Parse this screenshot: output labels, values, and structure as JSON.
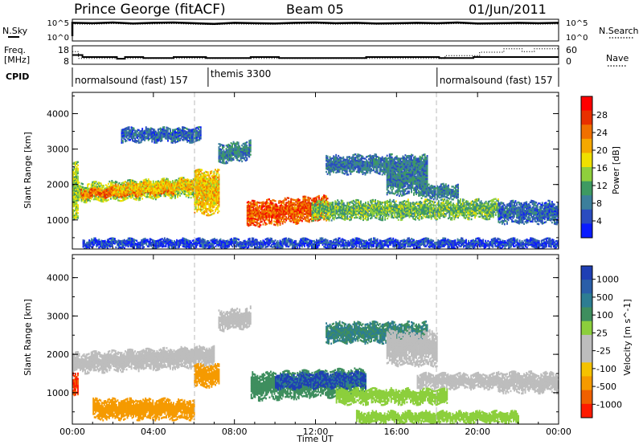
{
  "header": {
    "station": "Prince George (fitACF)",
    "beam": "Beam 05",
    "date": "01/Jun/2011"
  },
  "chart_data": [
    {
      "type": "line",
      "panel": "noise",
      "left_label": "N.Sky",
      "right_label": "N.Search",
      "y_ticks": [
        "10^5",
        "10^0"
      ],
      "series_sky_log10": [
        4.9,
        4.8,
        5.0,
        4.7,
        4.9,
        5.0,
        4.8,
        4.6,
        4.9,
        4.8,
        4.7,
        4.9,
        5.0,
        4.8,
        4.9,
        4.7,
        4.8,
        4.9,
        4.8,
        5.0,
        4.7,
        4.8,
        4.9,
        4.8,
        4.9
      ],
      "series_search_log10": [
        4.6,
        4.5,
        4.7,
        4.5,
        4.6,
        4.7,
        4.5,
        4.4,
        4.6,
        4.5,
        4.5,
        4.6,
        4.7,
        4.5,
        4.6,
        4.5,
        4.5,
        4.6,
        4.5,
        4.7,
        4.5,
        4.5,
        4.6,
        4.5,
        4.6
      ]
    },
    {
      "type": "line",
      "panel": "frequency-nave",
      "left_label_1": "Freq.",
      "left_label_2": "[MHz]",
      "right_label": "Nave",
      "y_ticks_left": [
        "18",
        "8"
      ],
      "y_ticks_right": [
        "60",
        "0"
      ],
      "freq_mhz": [
        {
          "x": 0.0,
          "y": 13.0
        },
        {
          "x": 0.5,
          "y": 11.8
        },
        {
          "x": 2.2,
          "y": 10.8
        },
        {
          "x": 2.6,
          "y": 11.8
        },
        {
          "x": 3.5,
          "y": 11.2
        },
        {
          "x": 5.0,
          "y": 11.8
        },
        {
          "x": 6.2,
          "y": 11.8
        },
        {
          "x": 6.6,
          "y": 11.2
        },
        {
          "x": 8.8,
          "y": 11.8
        },
        {
          "x": 10.2,
          "y": 11.2
        },
        {
          "x": 14.5,
          "y": 11.8
        },
        {
          "x": 18.0,
          "y": 11.8
        },
        {
          "x": 18.1,
          "y": 11.2
        },
        {
          "x": 19.8,
          "y": 11.8
        },
        {
          "x": 21.0,
          "y": 11.8
        }
      ],
      "nave": [
        {
          "x": 0.0,
          "y": 42
        },
        {
          "x": 0.3,
          "y": 18
        },
        {
          "x": 18.3,
          "y": 18
        },
        {
          "x": 18.4,
          "y": 28
        },
        {
          "x": 19.7,
          "y": 28
        },
        {
          "x": 20.1,
          "y": 40
        },
        {
          "x": 21.2,
          "y": 40
        },
        {
          "x": 21.3,
          "y": 52
        },
        {
          "x": 22.2,
          "y": 42
        },
        {
          "x": 22.8,
          "y": 52
        },
        {
          "x": 24.0,
          "y": 52
        }
      ]
    },
    {
      "type": "heatmap",
      "panel": "power",
      "ylabel": "Slant Range [km]",
      "cbar_label": "Power [dB]",
      "cbar_ticks": [
        "28",
        "24",
        "20",
        "16",
        "12",
        "8",
        "4"
      ],
      "y_ticks": [
        "4000",
        "3000",
        "2000",
        "1000"
      ],
      "ylim": [
        180,
        4600
      ],
      "cpid": [
        {
          "label": "normalsound (fast) 157",
          "start_h": 0,
          "end_h": 6.7
        },
        {
          "label": "themis 3300",
          "start_h": 6.7,
          "end_h": 18.0
        },
        {
          "label": "normalsound (fast) 157",
          "start_h": 18.0,
          "end_h": 24
        }
      ],
      "cpid_title": "CPID",
      "bands": [
        {
          "t0": 0.0,
          "t1": 7.0,
          "r0": 1500,
          "r1": 2000,
          "tilt": 180,
          "db": 14
        },
        {
          "t0": 0.4,
          "t1": 5.0,
          "r0": 1600,
          "r1": 1850,
          "tilt": 120,
          "db": 22
        },
        {
          "t0": 2.0,
          "t1": 6.4,
          "r0": 1700,
          "r1": 2000,
          "tilt": 160,
          "db": 18
        },
        {
          "t0": 6.0,
          "t1": 7.2,
          "r0": 1150,
          "r1": 2400,
          "tilt": 0,
          "db": 18
        },
        {
          "t0": 8.6,
          "t1": 12.6,
          "r0": 800,
          "r1": 1500,
          "tilt": 180,
          "db": 24
        },
        {
          "t0": 7.2,
          "t1": 8.8,
          "r0": 2600,
          "r1": 3100,
          "tilt": 100,
          "db": 8
        },
        {
          "t0": 11.8,
          "t1": 21.0,
          "r0": 1000,
          "r1": 1500,
          "tilt": 40,
          "db": 12
        },
        {
          "t0": 12.5,
          "t1": 17.5,
          "r0": 2300,
          "r1": 2800,
          "tilt": 0,
          "db": 7
        },
        {
          "t0": 15.5,
          "t1": 17.5,
          "r0": 1700,
          "r1": 2600,
          "tilt": 0,
          "db": 8
        },
        {
          "t0": 17.2,
          "t1": 19.0,
          "r0": 1600,
          "r1": 2000,
          "tilt": 0,
          "db": 8
        },
        {
          "t0": 0.0,
          "t1": 0.3,
          "r0": 1000,
          "r1": 2600,
          "tilt": 0,
          "db": 14
        },
        {
          "t0": 2.4,
          "t1": 6.3,
          "r0": 3200,
          "r1": 3600,
          "tilt": 0,
          "db": 6
        },
        {
          "t0": 0.5,
          "t1": 24.0,
          "r0": 200,
          "r1": 450,
          "tilt": 0,
          "db": 4
        },
        {
          "t0": 21.0,
          "t1": 24.0,
          "r0": 900,
          "r1": 1500,
          "tilt": 0,
          "db": 6
        }
      ]
    },
    {
      "type": "heatmap",
      "panel": "velocity",
      "ylabel": "Slant Range [km]",
      "cbar_label": "Velocity [m s^-1]",
      "cbar_ticks": [
        "1000",
        "500",
        "100",
        "25",
        "-25",
        "-100",
        "-500",
        "-1000"
      ],
      "y_ticks": [
        "4000",
        "3000",
        "2000",
        "1000"
      ],
      "ylim": [
        180,
        4600
      ],
      "bands": [
        {
          "t0": 0.0,
          "t1": 7.0,
          "r0": 1500,
          "r1": 2000,
          "tilt": 180,
          "v": 5
        },
        {
          "t0": 2.0,
          "t1": 6.4,
          "r0": 1700,
          "r1": 2000,
          "tilt": 160,
          "v": 0
        },
        {
          "t0": 6.0,
          "t1": 7.2,
          "r0": 1150,
          "r1": 1700,
          "tilt": 0,
          "v": -300
        },
        {
          "t0": 0.0,
          "t1": 0.3,
          "r0": 900,
          "r1": 1500,
          "tilt": 0,
          "v": -1100
        },
        {
          "t0": 1.0,
          "t1": 6.0,
          "r0": 300,
          "r1": 800,
          "tilt": 0,
          "v": -200
        },
        {
          "t0": 8.8,
          "t1": 14.5,
          "r0": 800,
          "r1": 1500,
          "tilt": 120,
          "v": 200
        },
        {
          "t0": 10.0,
          "t1": 14.5,
          "r0": 1100,
          "r1": 1500,
          "tilt": 40,
          "v": 800
        },
        {
          "t0": 13.0,
          "t1": 18.5,
          "r0": 700,
          "r1": 1100,
          "tilt": 0,
          "v": 60
        },
        {
          "t0": 7.2,
          "t1": 8.8,
          "r0": 2600,
          "r1": 3100,
          "tilt": 100,
          "v": 5
        },
        {
          "t0": 12.5,
          "t1": 17.5,
          "r0": 2300,
          "r1": 2800,
          "tilt": 0,
          "v": 300
        },
        {
          "t0": 17.0,
          "t1": 21.0,
          "r0": 1100,
          "r1": 1500,
          "tilt": 0,
          "v": 5
        },
        {
          "t0": 15.5,
          "t1": 18.0,
          "r0": 1700,
          "r1": 2600,
          "tilt": 0,
          "v": 8
        },
        {
          "t0": 14.0,
          "t1": 22.0,
          "r0": 200,
          "r1": 500,
          "tilt": 0,
          "v": 60
        },
        {
          "t0": 21.0,
          "t1": 24.0,
          "r0": 1000,
          "r1": 1500,
          "tilt": 0,
          "v": 5
        }
      ]
    }
  ],
  "x_axis": {
    "label": "Time UT",
    "ticks": [
      "00:00",
      "04:00",
      "08:00",
      "12:00",
      "16:00",
      "20:00",
      "00:00"
    ]
  }
}
